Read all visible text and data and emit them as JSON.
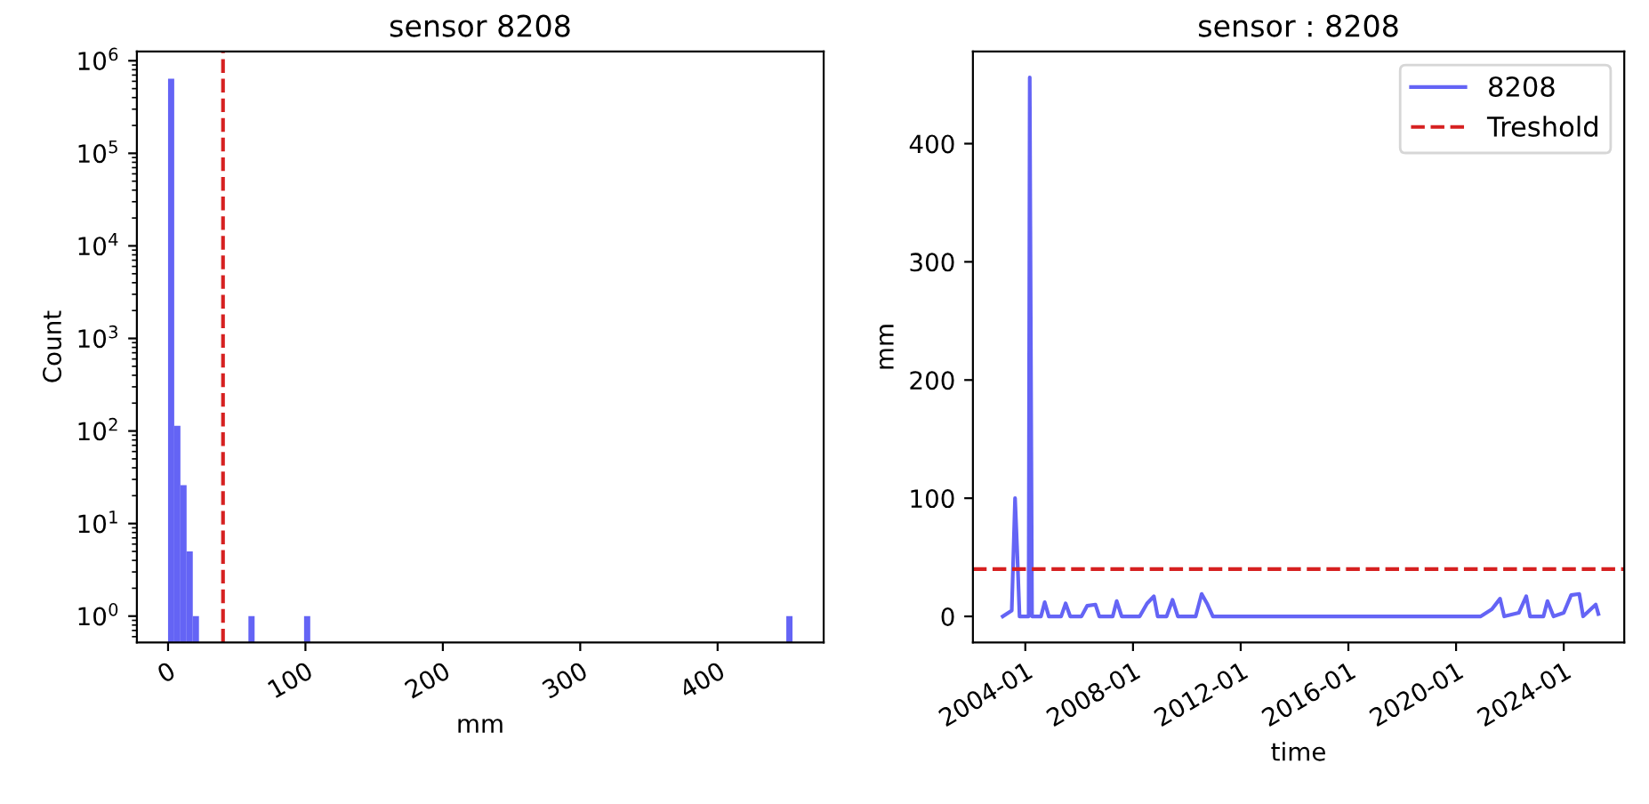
{
  "chart_data": [
    {
      "type": "histogram",
      "title": "sensor 8208",
      "xlabel": "mm",
      "ylabel": "Count",
      "log": "y",
      "color": "#6464f5",
      "bins": [
        0,
        4.5,
        9,
        13.5,
        18,
        22.5,
        27,
        31.5,
        36,
        40.5,
        45,
        49.5,
        54,
        58.5,
        63,
        67.5,
        72,
        76.5,
        81,
        85.5,
        90,
        94.5,
        99,
        103.5,
        108,
        112.5,
        117,
        121.5,
        126,
        130.5,
        135,
        139.5,
        144,
        148.5,
        153,
        157.5,
        162,
        166.5,
        171,
        175.5,
        180,
        184.5,
        189,
        193.5,
        198,
        202.5,
        207,
        211.5,
        216,
        220.5,
        225,
        229.5,
        234,
        238.5,
        243,
        247.5,
        252,
        256.5,
        261,
        265.5,
        270,
        274.5,
        279,
        283.5,
        288,
        292.5,
        297,
        301.5,
        306,
        310.5,
        315,
        319.5,
        324,
        328.5,
        333,
        337.5,
        342,
        346.5,
        351,
        355.5,
        360,
        364.5,
        369,
        373.5,
        378,
        382.5,
        387,
        391.5,
        396,
        400.5,
        405,
        409.5,
        414,
        418.5,
        423,
        427.5,
        432,
        436.5,
        441,
        445.5,
        450,
        454.5
      ],
      "values": [
        640000,
        114,
        26,
        5,
        1,
        null,
        null,
        null,
        null,
        null,
        null,
        null,
        null,
        1,
        null,
        null,
        null,
        null,
        null,
        null,
        null,
        null,
        1,
        null,
        null,
        null,
        null,
        null,
        null,
        null,
        null,
        null,
        null,
        null,
        null,
        null,
        null,
        null,
        null,
        null,
        null,
        null,
        null,
        null,
        null,
        null,
        null,
        null,
        null,
        null,
        null,
        null,
        null,
        null,
        null,
        null,
        null,
        null,
        null,
        null,
        null,
        null,
        null,
        null,
        null,
        null,
        null,
        null,
        null,
        null,
        null,
        null,
        null,
        null,
        null,
        null,
        null,
        null,
        null,
        null,
        null,
        null,
        null,
        null,
        null,
        null,
        null,
        null,
        null,
        null,
        null,
        null,
        null,
        null,
        null,
        null,
        null,
        null,
        null,
        null,
        1
      ],
      "xlim": [
        -22.7,
        477.2
      ],
      "xticks": [
        0,
        100,
        200,
        300,
        400
      ],
      "ylim": [
        0.52,
        1260000
      ],
      "yticks": [
        {
          "value": 1,
          "label": "10$^{0}$"
        },
        {
          "value": 10,
          "label": "10$^{1}$"
        },
        {
          "value": 100,
          "label": "10$^{2}$"
        },
        {
          "value": 1000,
          "label": "10$^{3}$"
        },
        {
          "value": 10000,
          "label": "10$^{4}$"
        },
        {
          "value": 100000,
          "label": "10$^{5}$"
        },
        {
          "value": 1000000,
          "label": "10$^{6}$"
        }
      ],
      "ref_lines": [
        {
          "axis": "x",
          "value": 40,
          "color": "#d62020",
          "line_style": "dashed"
        }
      ],
      "grid": false,
      "legend": false
    },
    {
      "type": "line",
      "title": "sensor : 8208",
      "xlabel": "time",
      "ylabel": "mm",
      "legend": "top right",
      "grid": false,
      "line_style": "solid",
      "marker": "none",
      "series": [
        {
          "name": "8208",
          "color": "#6464f5",
          "x": [
            "2003-03-01",
            "2003-07-01",
            "2003-08-15",
            "2003-09-10",
            "2003-10-15",
            "2004-02-15",
            "2004-03-01",
            "2004-04-01",
            "2004-08-01",
            "2004-09-20",
            "2004-11-15",
            "2005-05-01",
            "2005-07-01",
            "2005-09-01",
            "2006-02-01",
            "2006-04-20",
            "2006-08-10",
            "2006-10-01",
            "2007-04-01",
            "2007-05-25",
            "2007-08-01",
            "2008-04-01",
            "2008-07-10",
            "2008-10-10",
            "2008-12-01",
            "2009-04-01",
            "2009-06-20",
            "2009-09-01",
            "2010-05-01",
            "2010-07-20",
            "2010-10-01",
            "2010-12-20",
            "2020-12-01",
            "2021-05-01",
            "2021-08-20",
            "2021-10-15",
            "2022-05-01",
            "2022-08-10",
            "2022-10-01",
            "2023-04-01",
            "2023-05-25",
            "2023-08-15",
            "2024-01-01",
            "2024-04-10",
            "2024-07-30",
            "2024-09-20",
            "2025-03-10",
            "2025-04-15"
          ],
          "values": [
            0,
            5,
            100,
            60,
            0,
            0,
            456,
            0,
            0,
            12,
            0,
            0,
            11,
            0,
            0,
            9,
            10,
            0,
            0,
            13,
            0,
            0,
            11,
            17,
            0,
            0,
            14,
            0,
            0,
            19,
            11,
            0,
            0,
            6,
            15,
            0,
            3,
            17,
            0,
            0,
            13,
            0,
            3,
            18,
            19,
            0,
            10,
            2
          ]
        }
      ],
      "xlim": [
        "2002-01-20",
        "2026-04-01"
      ],
      "xticks": [
        {
          "value": "2004-01-01",
          "label": "2004-01"
        },
        {
          "value": "2008-01-01",
          "label": "2008-01"
        },
        {
          "value": "2012-01-01",
          "label": "2012-01"
        },
        {
          "value": "2016-01-01",
          "label": "2016-01"
        },
        {
          "value": "2020-01-01",
          "label": "2020-01"
        },
        {
          "value": "2024-01-01",
          "label": "2024-01"
        }
      ],
      "ylim": [
        -22,
        478
      ],
      "yticks": [
        0,
        100,
        200,
        300,
        400
      ],
      "ref_lines": [
        {
          "axis": "y",
          "value": 40,
          "label": "Treshold",
          "color": "#d62020",
          "line_style": "dashed"
        }
      ]
    }
  ]
}
